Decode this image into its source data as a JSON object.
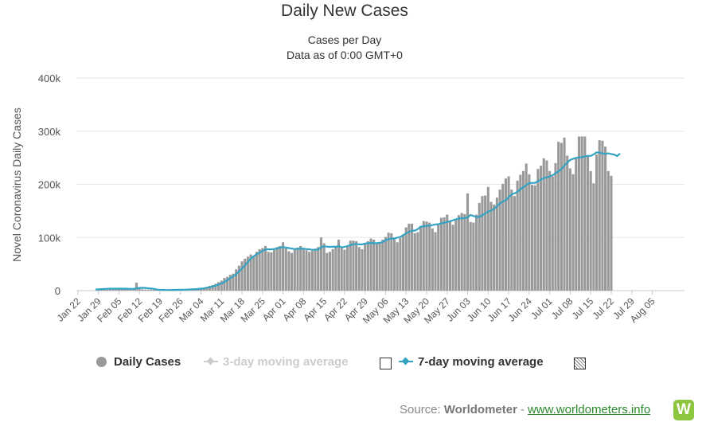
{
  "chart_data": {
    "type": "bar",
    "title": "Daily New Cases",
    "subtitle_lines": [
      "Cases per Day",
      "Data as of 0:00 GMT+0"
    ],
    "ylabel": "Novel Coronavirus Daily Cases",
    "xlabel": "",
    "ylim": [
      0,
      400000
    ],
    "y_ticks": [
      0,
      100000,
      200000,
      300000,
      400000
    ],
    "y_tick_labels": [
      "0",
      "100k",
      "200k",
      "300k",
      "400k"
    ],
    "start_date": "2020-01-22",
    "x_tick_labels": [
      "Jan 22",
      "Jan 29",
      "Feb 05",
      "Feb 12",
      "Feb 19",
      "Feb 26",
      "Mar 04",
      "Mar 11",
      "Mar 18",
      "Mar 25",
      "Apr 01",
      "Apr 08",
      "Apr 15",
      "Apr 22",
      "Apr 29",
      "May 06",
      "May 13",
      "May 20",
      "May 27",
      "Jun 03",
      "Jun 10",
      "Jun 17",
      "Jun 24",
      "Jul 01",
      "Jul 08",
      "Jul 15",
      "Jul 22",
      "Jul 29",
      "Aug 05"
    ],
    "grid": true,
    "series": [
      {
        "name": "Daily Cases",
        "type": "bar",
        "color": "#999999",
        "values": [
          0,
          0,
          0,
          0,
          0,
          0,
          0,
          2100,
          2600,
          2800,
          3200,
          3900,
          3700,
          3900,
          3700,
          3200,
          3900,
          3500,
          3100,
          2600,
          15000,
          5100,
          2600,
          2100,
          1900,
          1800,
          1600,
          400,
          500,
          800,
          600,
          900,
          1000,
          1200,
          1400,
          1500,
          1800,
          1900,
          2000,
          2400,
          2900,
          3500,
          4500,
          4900,
          7000,
          9000,
          10500,
          13000,
          16000,
          19000,
          24000,
          26000,
          30000,
          32000,
          40000,
          47000,
          55000,
          60000,
          64000,
          68000,
          65000,
          73000,
          78000,
          80000,
          84000,
          73000,
          72000,
          77000,
          82000,
          84000,
          91000,
          80000,
          74000,
          71000,
          77000,
          81000,
          84000,
          78000,
          76000,
          73000,
          75000,
          79000,
          82000,
          100000,
          89000,
          71000,
          73000,
          78000,
          82000,
          96000,
          80000,
          77000,
          84000,
          94000,
          94000,
          93000,
          82000,
          78000,
          88000,
          93000,
          98000,
          96000,
          90000,
          90000,
          96000,
          101000,
          109000,
          108000,
          97000,
          91000,
          99000,
          106000,
          119000,
          126000,
          126000,
          108000,
          110000,
          122000,
          131000,
          130000,
          128000,
          117000,
          110000,
          124000,
          137000,
          138000,
          143000,
          130000,
          124000,
          133000,
          142000,
          146000,
          144000,
          183000,
          129000,
          128000,
          143000,
          165000,
          178000,
          179000,
          195000,
          167000,
          162000,
          175000,
          190000,
          201000,
          211000,
          215000,
          190000,
          178000,
          207000,
          218000,
          225000,
          239000,
          219000,
          199000,
          198000,
          229000,
          235000,
          249000,
          245000,
          225000,
          215000,
          240000,
          280000,
          278000,
          288000,
          254000,
          230000,
          219000,
          248000,
          290000,
          290000,
          290000,
          252000,
          225000,
          202000,
          256000,
          283000,
          282000,
          271000,
          225000,
          216000
        ]
      },
      {
        "name": "3-day moving average",
        "type": "line",
        "color": "#cccccc",
        "visible": false
      },
      {
        "name": "7-day moving average",
        "type": "line",
        "color": "#33a3c4",
        "visible": true,
        "values": [
          null,
          null,
          null,
          null,
          null,
          null,
          2000,
          2500,
          2900,
          3100,
          3500,
          3700,
          3800,
          3800,
          3700,
          3700,
          3700,
          3600,
          3500,
          3300,
          4500,
          5100,
          5400,
          5100,
          4500,
          3900,
          3300,
          1900,
          1500,
          1300,
          1200,
          1200,
          1300,
          1400,
          1500,
          1600,
          1800,
          2000,
          2200,
          2500,
          2800,
          3200,
          3700,
          4300,
          5400,
          6600,
          8000,
          9400,
          11500,
          13600,
          16300,
          19700,
          23300,
          27000,
          31200,
          36100,
          41800,
          47300,
          54000,
          60000,
          64500,
          68400,
          71500,
          74500,
          77500,
          77900,
          77700,
          78300,
          79500,
          80900,
          81900,
          81100,
          80200,
          79100,
          78200,
          78700,
          79300,
          78900,
          78200,
          77700,
          76800,
          76800,
          77500,
          81500,
          83400,
          82900,
          82400,
          82600,
          82500,
          84200,
          81400,
          82400,
          83900,
          85700,
          87400,
          87900,
          87000,
          87100,
          88700,
          89200,
          89800,
          89300,
          89100,
          90200,
          91200,
          94700,
          97000,
          98000,
          98200,
          99600,
          101100,
          104300,
          107900,
          110500,
          112900,
          113000,
          115800,
          120200,
          121200,
          121800,
          122300,
          123300,
          124700,
          125000,
          126600,
          127700,
          129300,
          130700,
          132300,
          134300,
          135600,
          136300,
          136600,
          137700,
          142500,
          140400,
          138800,
          138700,
          141500,
          145000,
          148700,
          150500,
          154000,
          158800,
          163900,
          167600,
          169900,
          175700,
          181200,
          183100,
          185900,
          190500,
          194500,
          198500,
          202300,
          202700,
          202800,
          205800,
          208500,
          212200,
          213000,
          214900,
          217300,
          220900,
          224400,
          228800,
          235100,
          240700,
          246000,
          248100,
          249800,
          250600,
          251000,
          252300,
          253600,
          253500,
          256400,
          260200,
          259600,
          258500,
          257000,
          258400,
          257000,
          256000,
          253200,
          258000
        ]
      }
    ],
    "legend_position": "bottom"
  },
  "legend": {
    "daily_cases": "Daily Cases",
    "ma3": "3-day moving average",
    "ma7": "7-day moving average"
  },
  "source": {
    "prefix": "Source:",
    "name": "Worldometer",
    "separator": "-",
    "link": "www.worldometers.info",
    "logo_letter": "W"
  }
}
